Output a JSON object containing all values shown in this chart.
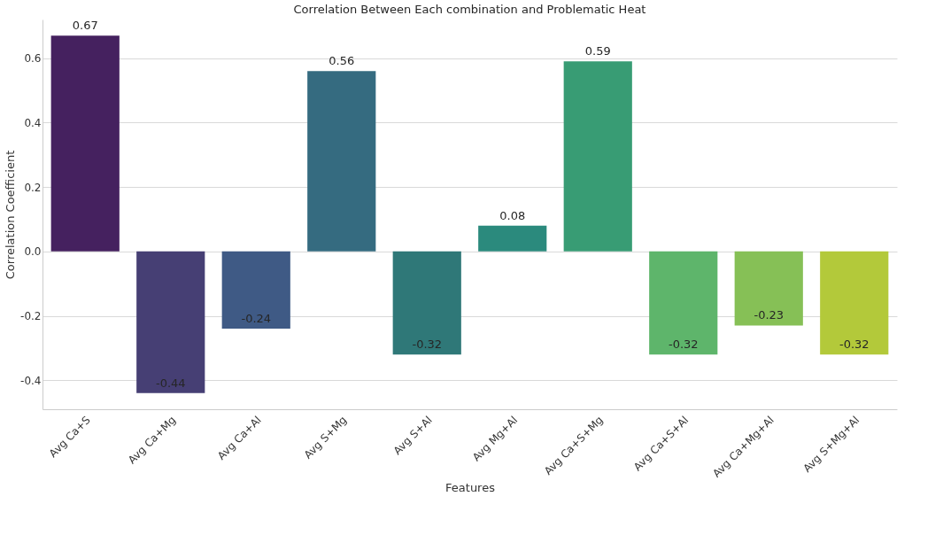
{
  "chart_data": {
    "type": "bar",
    "title": "Correlation Between Each combination and Problematic Heat",
    "xlabel": "Features",
    "ylabel": "Correlation Coefficient",
    "categories": [
      "Avg Ca+S",
      "Avg Ca+Mg",
      "Avg Ca+Al",
      "Avg S+Mg",
      "Avg S+Al",
      "Avg Mg+Al",
      "Avg Ca+S+Mg",
      "Avg Ca+S+Al",
      "Avg Ca+Mg+Al",
      "Avg S+Mg+Al"
    ],
    "values": [
      0.67,
      -0.44,
      -0.24,
      0.56,
      -0.32,
      0.08,
      0.59,
      -0.32,
      -0.23,
      -0.32
    ],
    "colors": [
      "#45215f",
      "#463f74",
      "#3f5a85",
      "#356b80",
      "#2f7878",
      "#2b8a7d",
      "#389c74",
      "#5eb56b",
      "#86c056",
      "#b3c93a"
    ],
    "ylim": [
      -0.49,
      0.72
    ],
    "yticks": [
      -0.4,
      -0.2,
      {
        "value": 0,
        "label": "0.0"
      },
      0.2,
      0.4,
      0.6
    ],
    "grid": "y",
    "data_labels": true
  }
}
